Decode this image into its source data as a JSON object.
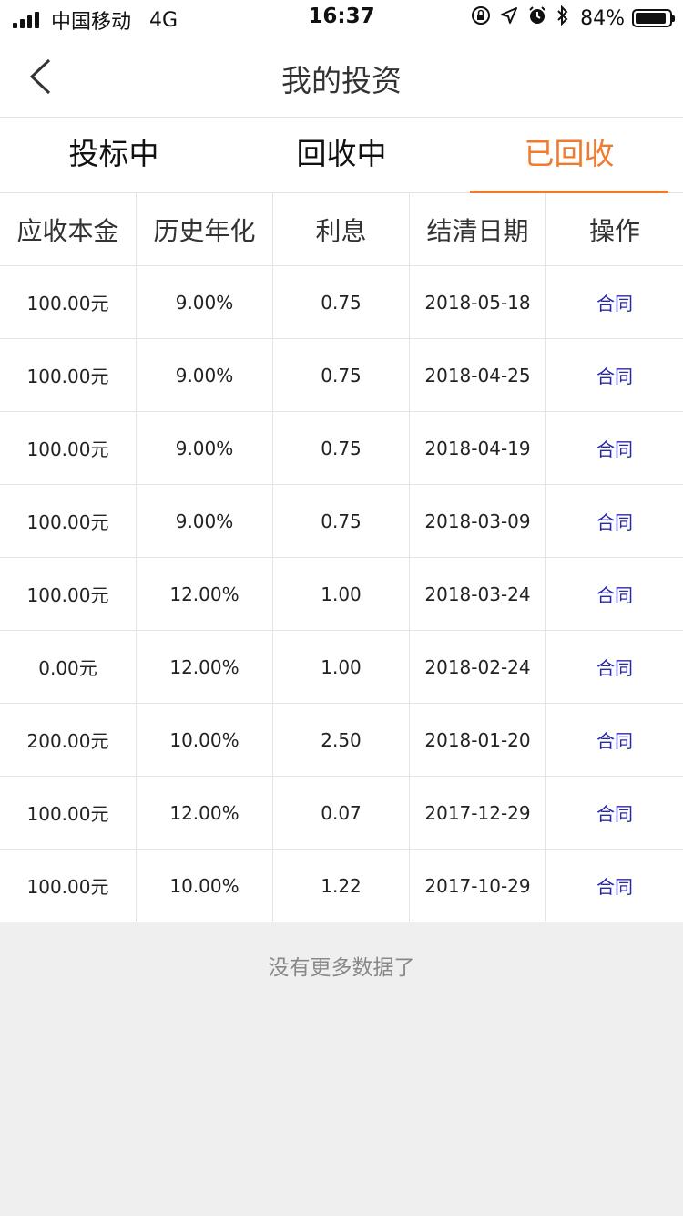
{
  "status_bar": {
    "carrier": "中国移动",
    "network": "4G",
    "time": "16:37",
    "battery": "84%"
  },
  "nav": {
    "title": "我的投资"
  },
  "tabs": [
    {
      "label": "投标中"
    },
    {
      "label": "回收中"
    },
    {
      "label": "已回收"
    }
  ],
  "table": {
    "headers": [
      "应收本金",
      "历史年化",
      "利息",
      "结清日期",
      "操作"
    ],
    "rows": [
      {
        "principal": "100.00元",
        "rate": "9.00%",
        "interest": "0.75",
        "date": "2018-05-18",
        "action": "合同"
      },
      {
        "principal": "100.00元",
        "rate": "9.00%",
        "interest": "0.75",
        "date": "2018-04-25",
        "action": "合同"
      },
      {
        "principal": "100.00元",
        "rate": "9.00%",
        "interest": "0.75",
        "date": "2018-04-19",
        "action": "合同"
      },
      {
        "principal": "100.00元",
        "rate": "9.00%",
        "interest": "0.75",
        "date": "2018-03-09",
        "action": "合同"
      },
      {
        "principal": "100.00元",
        "rate": "12.00%",
        "interest": "1.00",
        "date": "2018-03-24",
        "action": "合同"
      },
      {
        "principal": "0.00元",
        "rate": "12.00%",
        "interest": "1.00",
        "date": "2018-02-24",
        "action": "合同"
      },
      {
        "principal": "200.00元",
        "rate": "10.00%",
        "interest": "2.50",
        "date": "2018-01-20",
        "action": "合同"
      },
      {
        "principal": "100.00元",
        "rate": "12.00%",
        "interest": "0.07",
        "date": "2017-12-29",
        "action": "合同"
      },
      {
        "principal": "100.00元",
        "rate": "10.00%",
        "interest": "1.22",
        "date": "2017-10-29",
        "action": "合同"
      }
    ]
  },
  "footer": {
    "no_more": "没有更多数据了"
  },
  "colors": {
    "accent": "#f07a2e",
    "link": "#2a2aa8"
  }
}
